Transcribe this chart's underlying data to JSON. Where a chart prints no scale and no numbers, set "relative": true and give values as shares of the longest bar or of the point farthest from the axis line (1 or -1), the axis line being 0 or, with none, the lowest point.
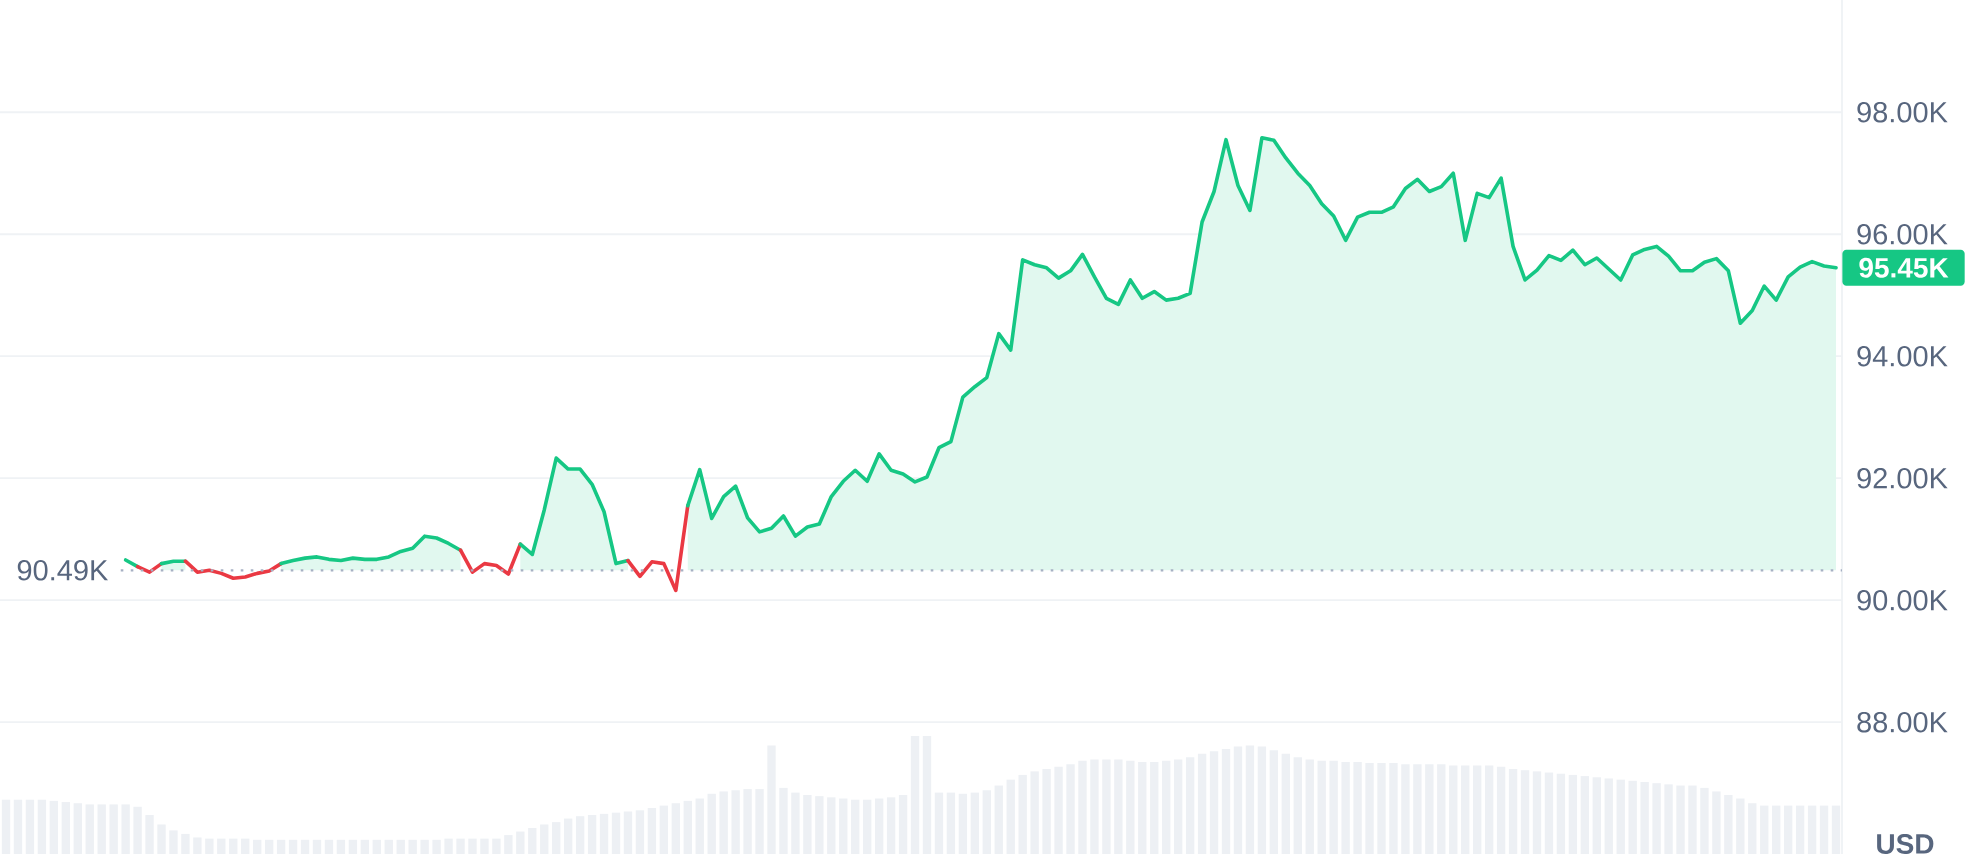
{
  "chart_data": [
    {
      "type": "area",
      "ylabel": "USD",
      "categories": [
        null,
        null,
        null,
        null,
        null,
        null,
        null,
        null,
        null,
        null,
        null,
        null,
        null,
        null,
        null,
        null,
        null,
        null,
        null,
        null,
        null,
        null,
        null,
        null,
        null,
        null,
        null,
        null,
        null,
        null,
        null,
        null,
        null,
        null,
        null,
        null,
        null,
        null,
        null,
        null,
        null,
        null,
        null,
        null,
        null,
        null,
        null,
        null,
        null,
        null,
        null,
        null,
        null,
        null,
        null,
        null,
        null,
        null,
        null,
        null,
        null,
        null,
        null,
        null,
        null,
        null,
        null,
        null,
        null,
        null,
        null,
        null,
        null,
        null,
        null,
        null,
        null,
        null,
        null,
        null,
        null,
        null,
        null,
        null,
        null,
        null,
        null,
        null,
        null,
        null,
        null,
        null,
        null,
        null,
        null,
        null,
        null,
        null,
        null,
        null,
        null,
        null,
        null,
        null,
        null,
        null,
        null,
        null,
        null,
        null,
        null,
        null,
        null,
        null,
        null,
        null,
        null,
        null,
        null,
        null,
        null,
        null,
        null,
        null,
        null,
        null,
        null,
        null,
        null,
        null,
        null,
        null,
        null,
        null,
        null,
        null,
        null,
        null,
        null,
        null,
        null,
        null,
        null,
        null,
        null,
        null,
        null,
        null,
        null,
        null,
        null,
        null,
        null,
        null
      ],
      "series": [
        {
          "type": "line",
          "color": "#16c784",
          "values": [
            null,
            null,
            null,
            null,
            null,
            null,
            null,
            null,
            null,
            null,
            90.66,
            90.55,
            null,
            null,
            null,
            null,
            null,
            null,
            null,
            null,
            null,
            null,
            null,
            null,
            null,
            null,
            null,
            null,
            null,
            null,
            null,
            null,
            null,
            null,
            null,
            null,
            null,
            null,
            null,
            null,
            null,
            null,
            null,
            null,
            null,
            null,
            null,
            null,
            null,
            null,
            null,
            null,
            null,
            null,
            null,
            null,
            null,
            null,
            null,
            null,
            null,
            null,
            null,
            null,
            null,
            null,
            null,
            null,
            null,
            null,
            null,
            null,
            null,
            null,
            null,
            null,
            null,
            null,
            null,
            null,
            null,
            null,
            null,
            null,
            null,
            null,
            null,
            null,
            null,
            null,
            null,
            null,
            null,
            null,
            null,
            null,
            null,
            null,
            null,
            null,
            null,
            null,
            null,
            null,
            null,
            null,
            null,
            null,
            null,
            null,
            null,
            null,
            null,
            null,
            null,
            null,
            null,
            null,
            null,
            null,
            null,
            null,
            null,
            null,
            null,
            null,
            null,
            null,
            null,
            null,
            null,
            null,
            null,
            null,
            null,
            null,
            null,
            null,
            null,
            null,
            null,
            null,
            null,
            null,
            null,
            null,
            null,
            null,
            null,
            null,
            null,
            null,
            null,
            null
          ]
        },
        {
          "type": "line",
          "color": "#ea3943",
          "values": [
            null,
            null,
            null,
            null,
            null,
            null,
            null,
            null,
            null,
            null,
            null,
            90.55,
            90.46,
            90.6,
            null,
            null,
            null,
            null,
            null,
            null,
            null,
            null,
            null,
            null,
            null,
            null,
            null,
            null,
            null,
            null,
            null,
            null,
            null,
            null,
            null,
            null,
            null,
            null,
            null,
            null,
            null,
            null,
            null,
            null,
            null,
            null,
            null,
            null,
            null,
            null,
            null,
            null,
            null,
            null,
            null,
            null,
            null,
            null,
            null,
            null,
            null,
            null,
            null,
            null,
            null,
            null,
            null,
            null,
            null,
            null,
            null,
            null,
            null,
            null,
            null,
            null,
            null,
            null,
            null,
            null,
            null,
            null,
            null,
            null,
            null,
            null,
            null,
            null,
            null,
            null,
            null,
            null,
            null,
            null,
            null,
            null,
            null,
            null,
            null,
            null,
            null,
            null,
            null,
            null,
            null,
            null,
            null,
            null,
            null,
            null,
            null,
            null,
            null,
            null,
            null,
            null,
            null,
            null,
            null,
            null,
            null,
            null,
            null,
            null,
            null,
            null,
            null,
            null,
            null,
            null,
            null,
            null,
            null,
            null,
            null,
            null,
            null,
            null,
            null,
            null,
            null,
            null,
            null,
            null,
            null,
            null,
            null,
            null,
            null,
            null,
            null,
            null,
            null,
            null
          ]
        },
        {
          "color": "#16c784",
          "values": [
            null,
            null,
            null,
            null,
            null,
            null,
            null,
            null,
            null,
            null,
            null,
            null,
            null,
            90.6,
            90.64,
            90.64,
            null,
            null,
            null,
            null,
            null,
            null,
            null,
            null,
            null,
            null,
            null,
            null,
            null,
            null,
            null,
            null,
            null,
            null,
            null,
            null,
            null,
            null,
            null,
            null,
            null,
            null,
            null,
            null,
            null,
            null,
            null,
            null,
            null,
            null,
            null,
            null,
            null,
            null,
            null,
            null,
            null,
            null,
            null,
            null,
            null,
            null,
            null,
            null,
            null,
            null,
            null,
            null,
            null,
            null,
            null,
            null,
            null,
            null,
            null,
            null,
            null,
            null,
            null,
            null,
            null,
            null,
            null,
            null,
            null,
            null,
            null,
            null,
            null,
            null,
            null,
            null,
            null,
            null,
            null,
            null,
            null,
            null,
            null,
            null,
            null,
            null,
            null,
            null,
            null,
            null,
            null,
            null,
            null,
            null,
            null,
            null,
            null,
            null,
            null,
            null,
            null,
            null,
            null,
            null,
            null,
            null,
            null,
            null,
            null,
            null,
            null,
            null,
            null,
            null,
            null,
            null,
            null,
            null,
            null,
            null,
            null,
            null,
            null,
            null,
            null,
            null,
            null,
            null,
            null,
            null,
            null,
            null,
            null,
            null,
            null,
            null,
            null,
            null
          ]
        },
        {
          "type": "line",
          "color": "#ea3943",
          "values": [
            null,
            null,
            null,
            null,
            null,
            null,
            null,
            null,
            null,
            null,
            null,
            null,
            null,
            null,
            null,
            90.64,
            90.46,
            90.49,
            90.44,
            90.36,
            90.38,
            90.44,
            90.48,
            90.6,
            null,
            null,
            null,
            null,
            null,
            null,
            null,
            null,
            null,
            null,
            null,
            null,
            null,
            null,
            null,
            null,
            null,
            null,
            null,
            null,
            null,
            null,
            null,
            null,
            null,
            null,
            null,
            null,
            null,
            null,
            null,
            null,
            null,
            null,
            null,
            null,
            null,
            null,
            null,
            null,
            null,
            null,
            null,
            null,
            null,
            null,
            null,
            null,
            null,
            null,
            null,
            null,
            null,
            null,
            null,
            null,
            null,
            null,
            null,
            null,
            null,
            null,
            null,
            null,
            null,
            null,
            null,
            null,
            null,
            null,
            null,
            null,
            null,
            null,
            null,
            null,
            null,
            null,
            null,
            null,
            null,
            null,
            null,
            null,
            null,
            null,
            null,
            null,
            null,
            null,
            null,
            null,
            null,
            null,
            null,
            null,
            null,
            null,
            null,
            null,
            null,
            null,
            null,
            null,
            null,
            null,
            null,
            null,
            null,
            null,
            null,
            null,
            null,
            null,
            null,
            null,
            null,
            null,
            null,
            null,
            null,
            null,
            null,
            null,
            null,
            null,
            null,
            null,
            null,
            null
          ]
        },
        {
          "color": "#16c784",
          "values": [
            null,
            null,
            null,
            null,
            null,
            null,
            null,
            null,
            null,
            null,
            null,
            null,
            null,
            null,
            null,
            null,
            null,
            null,
            null,
            null,
            null,
            null,
            null,
            90.6,
            90.65,
            90.69,
            90.71,
            90.67,
            90.65,
            90.69,
            90.67,
            90.67,
            90.71,
            90.8,
            90.85,
            91.05,
            91.02,
            90.93,
            90.82,
            null,
            null,
            null,
            null,
            null,
            null,
            null,
            null,
            null,
            null,
            null,
            null,
            null,
            null,
            null,
            null,
            null,
            null,
            null,
            null,
            null,
            null,
            null,
            null,
            null,
            null,
            null,
            null,
            null,
            null,
            null,
            null,
            null,
            null,
            null,
            null,
            null,
            null,
            null,
            null,
            null,
            null,
            null,
            null,
            null,
            null,
            null,
            null,
            null,
            null,
            null,
            null,
            null,
            null,
            null,
            null,
            null,
            null,
            null,
            null,
            null,
            null,
            null,
            null,
            null,
            null,
            null,
            null,
            null,
            null,
            null,
            null,
            null,
            null,
            null,
            null,
            null,
            null,
            null,
            null,
            null,
            null,
            null,
            null,
            null,
            null,
            null,
            null,
            null,
            null,
            null,
            null,
            null,
            null,
            null,
            null,
            null,
            null,
            null,
            null,
            null,
            null,
            null,
            null,
            null,
            null,
            null,
            null,
            null,
            null,
            null,
            null,
            null,
            null,
            null
          ]
        },
        {
          "type": "line",
          "color": "#ea3943",
          "values": [
            null,
            null,
            null,
            null,
            null,
            null,
            null,
            null,
            null,
            null,
            null,
            null,
            null,
            null,
            null,
            null,
            null,
            null,
            null,
            null,
            null,
            null,
            null,
            null,
            null,
            null,
            null,
            null,
            null,
            null,
            null,
            null,
            null,
            null,
            null,
            null,
            null,
            null,
            90.82,
            90.46,
            90.6,
            90.57,
            90.43,
            90.92,
            null,
            null,
            null,
            null,
            null,
            null,
            null,
            null,
            null,
            null,
            null,
            null,
            null,
            null,
            null,
            null,
            null,
            null,
            null,
            null,
            null,
            null,
            null,
            null,
            null,
            null,
            null,
            null,
            null,
            null,
            null,
            null,
            null,
            null,
            null,
            null,
            null,
            null,
            null,
            null,
            null,
            null,
            null,
            null,
            null,
            null,
            null,
            null,
            null,
            null,
            null,
            null,
            null,
            null,
            null,
            null,
            null,
            null,
            null,
            null,
            null,
            null,
            null,
            null,
            null,
            null,
            null,
            null,
            null,
            null,
            null,
            null,
            null,
            null,
            null,
            null,
            null,
            null,
            null,
            null,
            null,
            null,
            null,
            null,
            null,
            null,
            null,
            null,
            null,
            null,
            null,
            null,
            null,
            null,
            null,
            null,
            null,
            null,
            null,
            null,
            null,
            null,
            null,
            null,
            null,
            null,
            null,
            null,
            null,
            null
          ]
        },
        {
          "color": "#16c784",
          "values": [
            null,
            null,
            null,
            null,
            null,
            null,
            null,
            null,
            null,
            null,
            null,
            null,
            null,
            null,
            null,
            null,
            null,
            null,
            null,
            null,
            null,
            null,
            null,
            null,
            null,
            null,
            null,
            null,
            null,
            null,
            null,
            null,
            null,
            null,
            null,
            null,
            null,
            null,
            null,
            null,
            null,
            null,
            null,
            90.92,
            90.75,
            91.48,
            92.33,
            92.15,
            92.15,
            91.9,
            91.45,
            90.6,
            90.65,
            null,
            null,
            null,
            null,
            null,
            null,
            null,
            null,
            null,
            null,
            null,
            null,
            null,
            null,
            null,
            null,
            null,
            null,
            null,
            null,
            null,
            null,
            null,
            null,
            null,
            null,
            null,
            null,
            null,
            null,
            null,
            null,
            null,
            null,
            null,
            null,
            null,
            null,
            null,
            null,
            null,
            null,
            null,
            null,
            null,
            null,
            null,
            null,
            null,
            null,
            null,
            null,
            null,
            null,
            null,
            null,
            null,
            null,
            null,
            null,
            null,
            null,
            null,
            null,
            null,
            null,
            null,
            null,
            null,
            null,
            null,
            null,
            null,
            null,
            null,
            null,
            null,
            null,
            null,
            null,
            null,
            null,
            null,
            null,
            null,
            null,
            null,
            null,
            null,
            null,
            null,
            null,
            null,
            null,
            null,
            null,
            null,
            null,
            null,
            null,
            null
          ]
        },
        {
          "type": "line",
          "color": "#ea3943",
          "values": [
            null,
            null,
            null,
            null,
            null,
            null,
            null,
            null,
            null,
            null,
            null,
            null,
            null,
            null,
            null,
            null,
            null,
            null,
            null,
            null,
            null,
            null,
            null,
            null,
            null,
            null,
            null,
            null,
            null,
            null,
            null,
            null,
            null,
            null,
            null,
            null,
            null,
            null,
            null,
            null,
            null,
            null,
            null,
            null,
            null,
            null,
            null,
            null,
            null,
            null,
            null,
            null,
            90.65,
            90.39,
            90.63,
            90.6,
            90.16,
            91.55,
            null,
            null,
            null,
            null,
            null,
            null,
            null,
            null,
            null,
            null,
            null,
            null,
            null,
            null,
            null,
            null,
            null,
            null,
            null,
            null,
            null,
            null,
            null,
            null,
            null,
            null,
            null,
            null,
            null,
            null,
            null,
            null,
            null,
            null,
            null,
            null,
            null,
            null,
            null,
            null,
            null,
            null,
            null,
            null,
            null,
            null,
            null,
            null,
            null,
            null,
            null,
            null,
            null,
            null,
            null,
            null,
            null,
            null,
            null,
            null,
            null,
            null,
            null,
            null,
            null,
            null,
            null,
            null,
            null,
            null,
            null,
            null,
            null,
            null,
            null,
            null,
            null,
            null,
            null,
            null,
            null,
            null,
            null,
            null,
            null,
            null,
            null,
            null,
            null,
            null,
            null,
            null,
            null,
            null,
            null,
            null
          ]
        },
        {
          "color": "#16c784",
          "values": [
            null,
            null,
            null,
            null,
            null,
            null,
            null,
            null,
            null,
            null,
            null,
            null,
            null,
            null,
            null,
            null,
            null,
            null,
            null,
            null,
            null,
            null,
            null,
            null,
            null,
            null,
            null,
            null,
            null,
            null,
            null,
            null,
            null,
            null,
            null,
            null,
            null,
            null,
            null,
            null,
            null,
            null,
            null,
            null,
            null,
            null,
            null,
            null,
            null,
            null,
            null,
            null,
            null,
            null,
            null,
            null,
            null,
            91.55,
            92.14,
            91.34,
            91.7,
            91.87,
            91.35,
            91.12,
            91.18,
            91.38,
            91.05,
            91.2,
            91.25,
            91.7,
            91.95,
            92.13,
            91.95,
            92.4,
            92.13,
            92.07,
            91.94,
            92.02,
            92.5,
            92.6,
            93.33,
            93.5,
            93.65,
            94.37,
            94.1,
            95.58,
            95.5,
            95.45,
            95.28,
            95.4,
            95.67,
            95.3,
            94.95,
            94.85,
            95.25,
            94.95,
            95.06,
            94.92,
            94.95,
            95.03,
            96.2,
            96.7,
            97.55,
            96.8,
            96.39,
            97.58,
            97.54,
            97.25,
            97.0,
            96.8,
            96.5,
            96.3,
            95.9,
            96.28,
            96.36,
            96.36,
            96.45,
            96.75,
            96.9,
            96.7,
            96.78,
            97.0,
            95.9,
            96.67,
            96.6,
            96.92,
            95.8,
            95.25,
            95.41,
            95.65,
            95.57,
            95.74,
            95.5,
            95.61,
            95.43,
            95.25,
            95.66,
            95.75,
            95.8,
            95.64,
            95.4,
            95.4,
            95.54,
            95.6,
            95.4,
            94.54,
            94.75,
            95.15,
            94.92,
            95.3,
            95.46,
            95.55,
            95.48,
            95.45
          ]
        }
      ],
      "ylim": [
        85.84,
        99.84
      ],
      "yticks": [
        {
          "value": 88,
          "label": "88.00K"
        },
        {
          "value": 90,
          "label": "90.00K"
        },
        {
          "value": 92,
          "label": "92.00K"
        },
        {
          "value": 94,
          "label": "94.00K"
        },
        {
          "value": 96,
          "label": "96.00K"
        },
        {
          "value": 98,
          "label": "98.00K"
        }
      ],
      "grid": "y",
      "tick_labels": "y",
      "ref_lines": [
        {
          "axis": "y",
          "value": 90.49,
          "label": "90.49K",
          "line_style": "dotted",
          "color": "#a6b0c3"
        }
      ],
      "annotations": [
        "95.45K"
      ]
    },
    {
      "type": "bar",
      "relative": true,
      "categories": [
        null,
        null,
        null,
        null,
        null,
        null,
        null,
        null,
        null,
        null,
        null,
        null,
        null,
        null,
        null,
        null,
        null,
        null,
        null,
        null,
        null,
        null,
        null,
        null,
        null,
        null,
        null,
        null,
        null,
        null,
        null,
        null,
        null,
        null,
        null,
        null,
        null,
        null,
        null,
        null,
        null,
        null,
        null,
        null,
        null,
        null,
        null,
        null,
        null,
        null,
        null,
        null,
        null,
        null,
        null,
        null,
        null,
        null,
        null,
        null,
        null,
        null,
        null,
        null,
        null,
        null,
        null,
        null,
        null,
        null,
        null,
        null,
        null,
        null,
        null,
        null,
        null,
        null,
        null,
        null,
        null,
        null,
        null,
        null,
        null,
        null,
        null,
        null,
        null,
        null,
        null,
        null,
        null,
        null,
        null,
        null,
        null,
        null,
        null,
        null,
        null,
        null,
        null,
        null,
        null,
        null,
        null,
        null,
        null,
        null,
        null,
        null,
        null,
        null,
        null,
        null,
        null,
        null,
        null,
        null,
        null,
        null,
        null,
        null,
        null,
        null,
        null,
        null,
        null,
        null,
        null,
        null,
        null,
        null,
        null,
        null,
        null,
        null,
        null,
        null,
        null,
        null,
        null,
        null,
        null,
        null,
        null,
        null,
        null,
        null,
        null,
        null,
        null,
        null
      ],
      "color": "#edf0f4",
      "values": [
        0.46,
        0.46,
        0.46,
        0.46,
        0.45,
        0.44,
        0.43,
        0.42,
        0.42,
        0.42,
        0.42,
        0.4,
        0.33,
        0.25,
        0.2,
        0.17,
        0.14,
        0.13,
        0.13,
        0.13,
        0.13,
        0.12,
        0.12,
        0.12,
        0.12,
        0.12,
        0.12,
        0.12,
        0.12,
        0.12,
        0.12,
        0.12,
        0.12,
        0.12,
        0.12,
        0.12,
        0.12,
        0.13,
        0.13,
        0.13,
        0.13,
        0.13,
        0.16,
        0.19,
        0.22,
        0.25,
        0.27,
        0.3,
        0.32,
        0.33,
        0.34,
        0.35,
        0.36,
        0.37,
        0.39,
        0.41,
        0.43,
        0.45,
        0.47,
        0.51,
        0.53,
        0.54,
        0.55,
        0.55,
        0.92,
        0.56,
        0.52,
        0.5,
        0.49,
        0.48,
        0.47,
        0.46,
        0.46,
        0.47,
        0.48,
        0.5,
        1.0,
        1.0,
        0.52,
        0.52,
        0.51,
        0.52,
        0.54,
        0.58,
        0.63,
        0.67,
        0.7,
        0.72,
        0.74,
        0.76,
        0.79,
        0.8,
        0.8,
        0.8,
        0.79,
        0.78,
        0.78,
        0.79,
        0.8,
        0.82,
        0.85,
        0.87,
        0.89,
        0.91,
        0.92,
        0.91,
        0.88,
        0.85,
        0.82,
        0.8,
        0.79,
        0.79,
        0.78,
        0.78,
        0.77,
        0.77,
        0.77,
        0.76,
        0.76,
        0.76,
        0.76,
        0.75,
        0.75,
        0.75,
        0.75,
        0.74,
        0.72,
        0.71,
        0.7,
        0.69,
        0.68,
        0.67,
        0.66,
        0.65,
        0.64,
        0.63,
        0.62,
        0.61,
        0.6,
        0.59,
        0.58,
        0.58,
        0.56,
        0.53,
        0.5,
        0.47,
        0.43,
        0.41,
        0.41,
        0.41,
        0.41,
        0.41,
        0.41,
        0.41
      ]
    }
  ]
}
